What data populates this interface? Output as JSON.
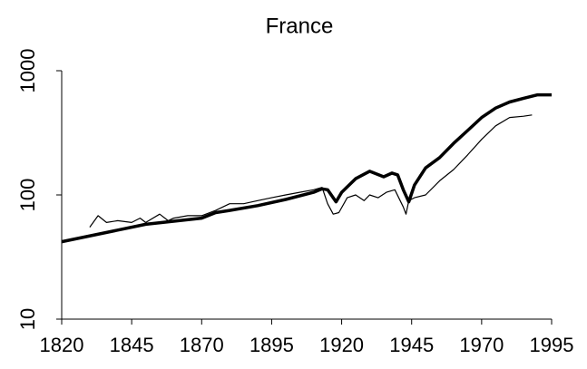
{
  "chart_data": {
    "type": "line",
    "title": "France",
    "xlim": [
      1820,
      1995
    ],
    "xticks": [
      1820,
      1845,
      1870,
      1895,
      1920,
      1945,
      1970,
      1995
    ],
    "ylim": [
      10,
      1000
    ],
    "yticks": [
      10,
      100,
      1000
    ],
    "log_y": true,
    "series": [
      {
        "color": "#000000",
        "width": 3.5,
        "x": [
          1820,
          1850,
          1870,
          1875,
          1880,
          1890,
          1900,
          1910,
          1913,
          1915,
          1918,
          1920,
          1925,
          1930,
          1935,
          1938,
          1940,
          1942,
          1944,
          1946,
          1950,
          1955,
          1960,
          1965,
          1970,
          1975,
          1980,
          1985,
          1990,
          1995
        ],
        "values": [
          42,
          58,
          65,
          72,
          75,
          82,
          92,
          105,
          112,
          110,
          88,
          105,
          135,
          155,
          140,
          150,
          145,
          110,
          88,
          120,
          165,
          200,
          260,
          330,
          420,
          500,
          560,
          600,
          640,
          640
        ]
      },
      {
        "color": "#000000",
        "width": 1.2,
        "x": [
          1830,
          1833,
          1836,
          1840,
          1845,
          1848,
          1850,
          1855,
          1858,
          1860,
          1865,
          1870,
          1875,
          1880,
          1885,
          1890,
          1895,
          1900,
          1905,
          1910,
          1913,
          1915,
          1917,
          1919,
          1922,
          1925,
          1928,
          1930,
          1933,
          1936,
          1939,
          1942,
          1943,
          1944,
          1946,
          1950,
          1955,
          1960,
          1965,
          1970,
          1975,
          1980,
          1985,
          1988
        ],
        "values": [
          55,
          68,
          60,
          62,
          60,
          65,
          60,
          70,
          62,
          65,
          68,
          68,
          75,
          85,
          85,
          90,
          95,
          100,
          105,
          110,
          115,
          85,
          70,
          72,
          95,
          100,
          90,
          100,
          95,
          105,
          110,
          80,
          70,
          90,
          95,
          100,
          130,
          160,
          210,
          280,
          360,
          420,
          430,
          440
        ]
      }
    ]
  }
}
